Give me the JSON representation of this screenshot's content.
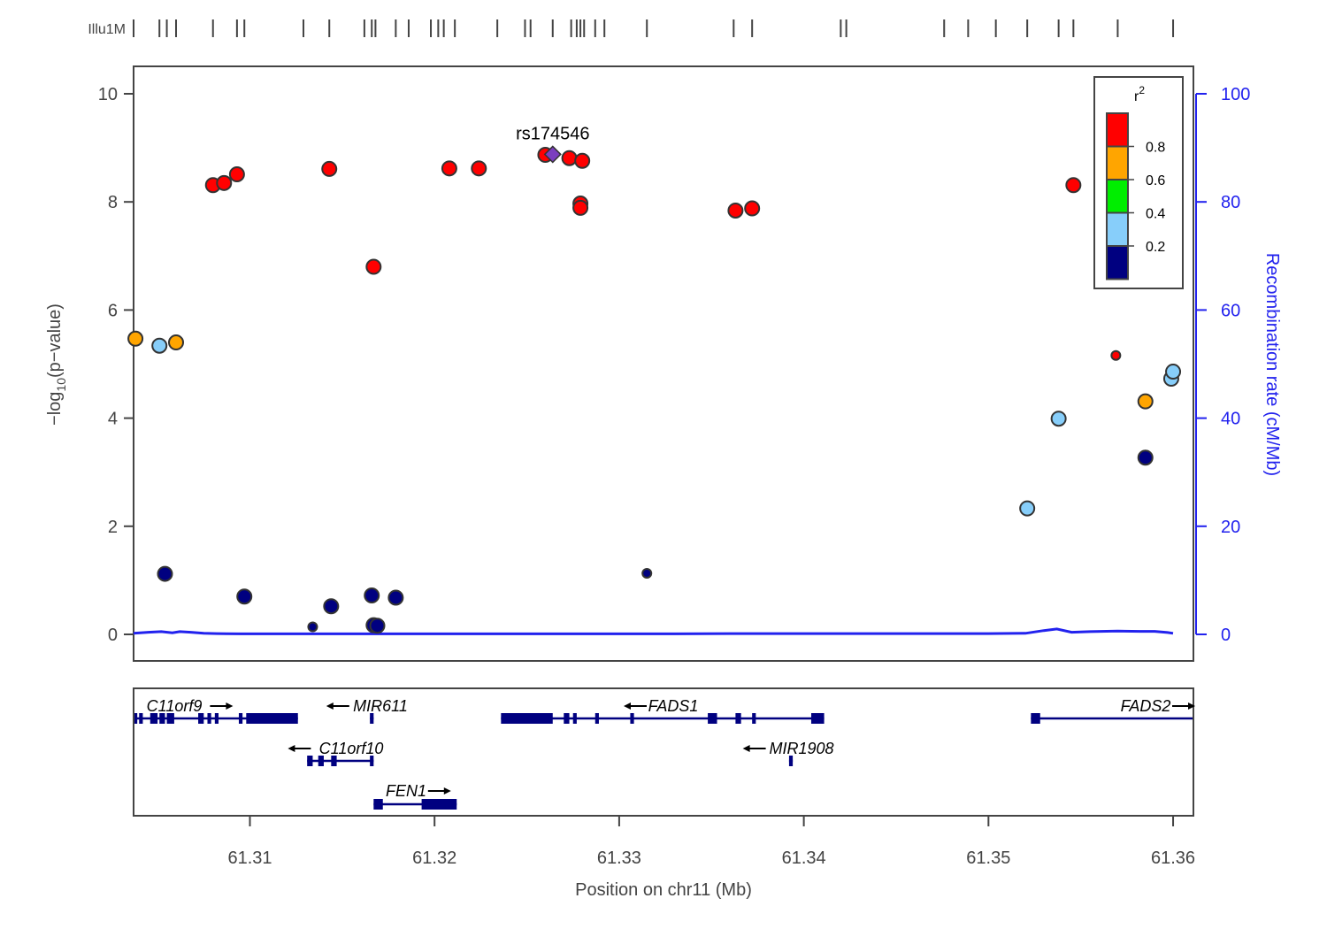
{
  "chart_data": {
    "type": "scatter",
    "xlabel": "Position on chr11 (Mb)",
    "ylabel_prefix": "−log",
    "ylabel_sub": "10",
    "ylabel_suffix": "(p−value)",
    "y2label": "Recombination rate (cM/Mb)",
    "xlim": [
      61.3037,
      61.3611
    ],
    "ylim": [
      0,
      10
    ],
    "y2lim": [
      0,
      100
    ],
    "x_ticks": [
      "61.31",
      "61.32",
      "61.33",
      "61.34",
      "61.35",
      "61.36"
    ],
    "y_ticks": [
      "0",
      "2",
      "4",
      "6",
      "8",
      "10"
    ],
    "y2_ticks": [
      "0",
      "20",
      "40",
      "60",
      "80",
      "100"
    ],
    "lead_snp": {
      "name": "rs174546",
      "x": 61.3264,
      "y": 8.88,
      "color": "#7b3fbf"
    },
    "colors": {
      "red": "#ff0000",
      "orange": "#ffa500",
      "green": "#00ee00",
      "lightblue": "#87cefa",
      "navy": "#000080",
      "recomb": "#2222ee"
    },
    "legend": {
      "title": "r",
      "title_sup": "2",
      "labels": [
        "0.8",
        "0.6",
        "0.4",
        "0.2"
      ]
    },
    "track_label": "Illu1M",
    "track_positions": [
      61.3037,
      61.3051,
      61.3055,
      61.306,
      61.308,
      61.3093,
      61.3097,
      61.3129,
      61.3143,
      61.3162,
      61.3166,
      61.3168,
      61.3179,
      61.3186,
      61.3198,
      61.3202,
      61.3205,
      61.3211,
      61.3234,
      61.3249,
      61.3252,
      61.3264,
      61.3274,
      61.3277,
      61.3279,
      61.3281,
      61.3287,
      61.3292,
      61.3315,
      61.3362,
      61.3372,
      61.342,
      61.3423,
      61.3476,
      61.3489,
      61.3504,
      61.3521,
      61.3538,
      61.3546,
      61.357,
      61.36
    ],
    "points": [
      {
        "x": 61.3038,
        "y": 5.47,
        "r2": "orange"
      },
      {
        "x": 61.3051,
        "y": 5.34,
        "r2": "lightblue"
      },
      {
        "x": 61.306,
        "y": 5.4,
        "r2": "orange"
      },
      {
        "x": 61.308,
        "y": 8.31,
        "r2": "red"
      },
      {
        "x": 61.3086,
        "y": 8.35,
        "r2": "red"
      },
      {
        "x": 61.3093,
        "y": 8.51,
        "r2": "red"
      },
      {
        "x": 61.3143,
        "y": 8.61,
        "r2": "red"
      },
      {
        "x": 61.3167,
        "y": 6.8,
        "r2": "red"
      },
      {
        "x": 61.3208,
        "y": 8.62,
        "r2": "red"
      },
      {
        "x": 61.3224,
        "y": 8.62,
        "r2": "red"
      },
      {
        "x": 61.326,
        "y": 8.87,
        "r2": "red"
      },
      {
        "x": 61.3273,
        "y": 8.81,
        "r2": "red"
      },
      {
        "x": 61.328,
        "y": 8.76,
        "r2": "red"
      },
      {
        "x": 61.3279,
        "y": 7.97,
        "r2": "red"
      },
      {
        "x": 61.3279,
        "y": 7.89,
        "r2": "red"
      },
      {
        "x": 61.3363,
        "y": 7.84,
        "r2": "red"
      },
      {
        "x": 61.3372,
        "y": 7.88,
        "r2": "red"
      },
      {
        "x": 61.3546,
        "y": 8.31,
        "r2": "red"
      },
      {
        "x": 61.3569,
        "y": 5.16,
        "r2": "red",
        "small": true
      },
      {
        "x": 61.3538,
        "y": 3.99,
        "r2": "lightblue"
      },
      {
        "x": 61.3585,
        "y": 4.31,
        "r2": "orange"
      },
      {
        "x": 61.3585,
        "y": 3.27,
        "r2": "navy"
      },
      {
        "x": 61.3599,
        "y": 4.73,
        "r2": "lightblue"
      },
      {
        "x": 61.36,
        "y": 4.86,
        "r2": "lightblue"
      },
      {
        "x": 61.3521,
        "y": 2.33,
        "r2": "lightblue"
      },
      {
        "x": 61.3054,
        "y": 1.12,
        "r2": "navy"
      },
      {
        "x": 61.3097,
        "y": 0.7,
        "r2": "navy"
      },
      {
        "x": 61.3134,
        "y": 0.14,
        "r2": "navy",
        "small": true
      },
      {
        "x": 61.3144,
        "y": 0.52,
        "r2": "navy"
      },
      {
        "x": 61.3166,
        "y": 0.72,
        "r2": "navy"
      },
      {
        "x": 61.3167,
        "y": 0.17,
        "r2": "navy"
      },
      {
        "x": 61.3169,
        "y": 0.16,
        "r2": "navy"
      },
      {
        "x": 61.3179,
        "y": 0.68,
        "r2": "navy"
      },
      {
        "x": 61.3315,
        "y": 1.13,
        "r2": "navy",
        "small": true
      }
    ],
    "recombination": [
      [
        61.3037,
        0.2
      ],
      [
        61.3045,
        0.4
      ],
      [
        61.3052,
        0.5
      ],
      [
        61.3058,
        0.3
      ],
      [
        61.3062,
        0.5
      ],
      [
        61.3068,
        0.4
      ],
      [
        61.3075,
        0.2
      ],
      [
        61.3082,
        0.15
      ],
      [
        61.3095,
        0.1
      ],
      [
        61.32,
        0.1
      ],
      [
        61.333,
        0.1
      ],
      [
        61.336,
        0.15
      ],
      [
        61.35,
        0.15
      ],
      [
        61.352,
        0.2
      ],
      [
        61.353,
        0.7
      ],
      [
        61.3537,
        1.0
      ],
      [
        61.3545,
        0.4
      ],
      [
        61.3555,
        0.5
      ],
      [
        61.357,
        0.6
      ],
      [
        61.3582,
        0.55
      ],
      [
        61.359,
        0.55
      ],
      [
        61.3597,
        0.35
      ],
      [
        61.36,
        0.2
      ]
    ],
    "genes": [
      {
        "name": "C11orf9",
        "dir": "right",
        "start": 61.3037,
        "end": 61.3126,
        "row": 0,
        "exons": [
          [
            61.3037,
            61.3039
          ],
          [
            61.304,
            61.3042
          ],
          [
            61.3046,
            61.305
          ],
          [
            61.3051,
            61.3054
          ],
          [
            61.3055,
            61.3059
          ],
          [
            61.3072,
            61.3075
          ],
          [
            61.3077,
            61.3079
          ],
          [
            61.3081,
            61.3083
          ],
          [
            61.3094,
            61.3096
          ],
          [
            61.3098,
            61.3126
          ]
        ]
      },
      {
        "name": "MIR611",
        "dir": "left",
        "start": 61.3165,
        "end": 61.3167,
        "row": 0,
        "exons": [
          [
            61.3165,
            61.3167
          ]
        ]
      },
      {
        "name": "FADS1",
        "dir": "left",
        "start": 61.3236,
        "end": 61.3411,
        "row": 0,
        "exons": [
          [
            61.3236,
            61.3264
          ],
          [
            61.327,
            61.3273
          ],
          [
            61.3275,
            61.3277
          ],
          [
            61.3287,
            61.3289
          ],
          [
            61.3306,
            61.3308
          ],
          [
            61.3348,
            61.3353
          ],
          [
            61.3363,
            61.3366
          ],
          [
            61.3372,
            61.3374
          ],
          [
            61.3404,
            61.3411
          ]
        ]
      },
      {
        "name": "FADS2",
        "dir": "right",
        "start": 61.3523,
        "end": 61.3611,
        "row": 0,
        "exons": [
          [
            61.3523,
            61.3528
          ]
        ]
      },
      {
        "name": "C11orf10",
        "dir": "left",
        "start": 61.3131,
        "end": 61.3167,
        "row": 1,
        "exons": [
          [
            61.3131,
            61.3134
          ],
          [
            61.3137,
            61.314
          ],
          [
            61.3144,
            61.3147
          ],
          [
            61.3165,
            61.3167
          ]
        ]
      },
      {
        "name": "MIR1908",
        "dir": "left",
        "start": 61.3392,
        "end": 61.3394,
        "row": 1,
        "exons": [
          [
            61.3392,
            61.3394
          ]
        ]
      },
      {
        "name": "FEN1",
        "dir": "right",
        "start": 61.3167,
        "end": 61.3212,
        "row": 2,
        "exons": [
          [
            61.3167,
            61.3172
          ],
          [
            61.3193,
            61.3212
          ]
        ]
      }
    ]
  }
}
